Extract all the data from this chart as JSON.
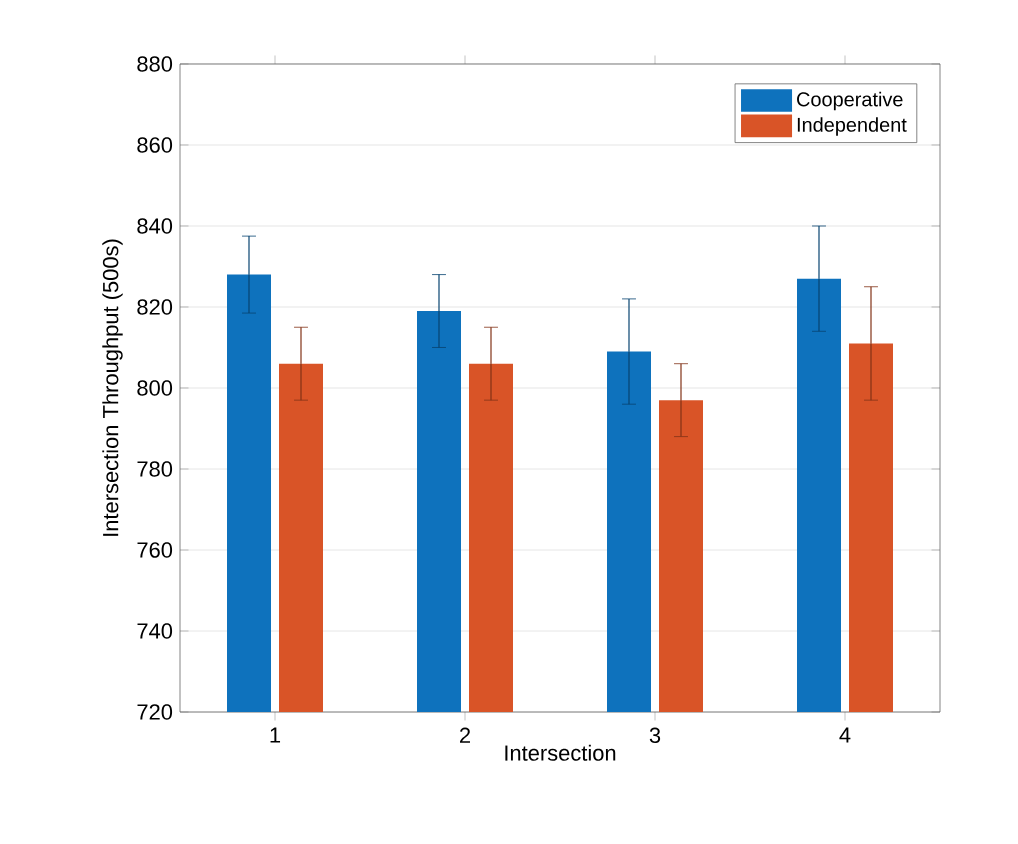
{
  "chart_data": {
    "type": "bar",
    "xlabel": "Intersection",
    "ylabel": "Intersection Throughput (500s)",
    "categories": [
      "1",
      "2",
      "3",
      "4"
    ],
    "series": [
      {
        "name": "Cooperative",
        "color": "#0e72bd",
        "values": [
          828,
          819,
          809,
          827
        ],
        "errors": [
          9.5,
          9,
          13,
          13
        ]
      },
      {
        "name": "Independent",
        "color": "#d95427",
        "values": [
          806,
          806,
          797,
          811
        ],
        "errors": [
          9,
          9,
          9,
          14
        ]
      }
    ],
    "ylim": [
      720,
      880
    ],
    "yticks": [
      720,
      740,
      760,
      780,
      800,
      820,
      840,
      860,
      880
    ],
    "grid": "y",
    "legend": "top right"
  }
}
